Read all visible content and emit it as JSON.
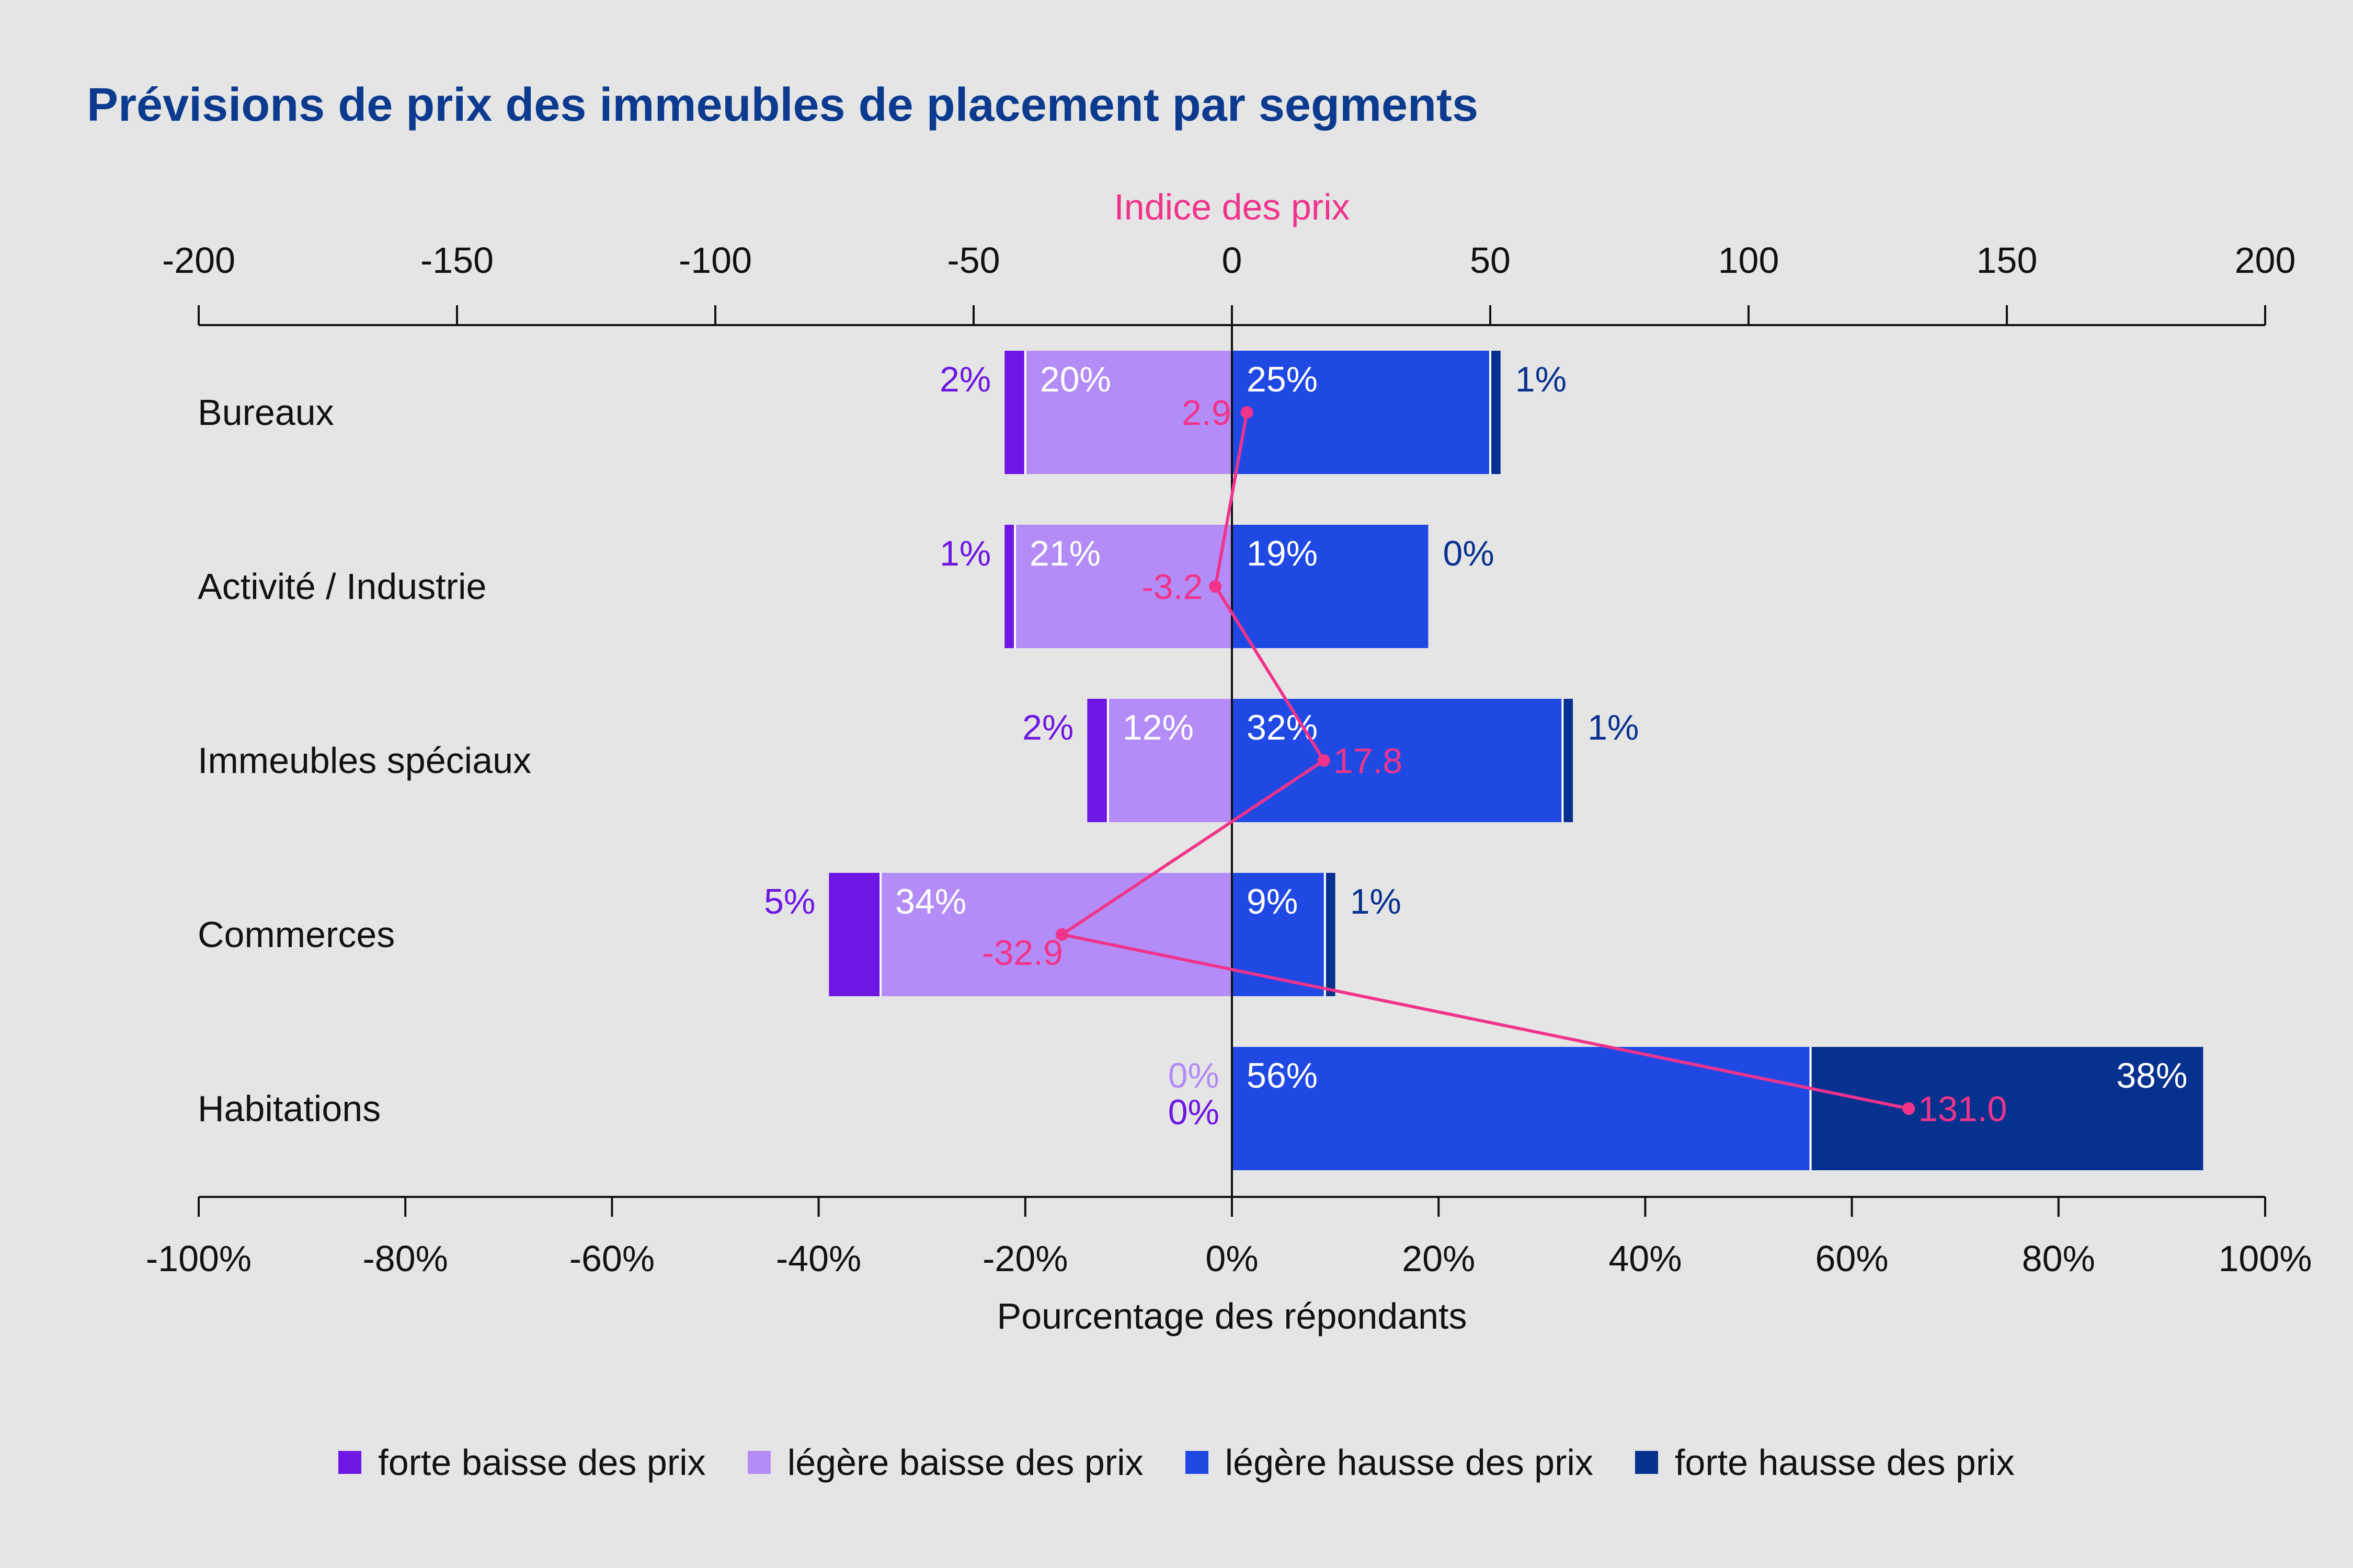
{
  "chart_data": {
    "type": "bar",
    "title": "Prévisions de prix des immeubles de placement par segments",
    "xlabel": "Pourcentage des répondants",
    "xlim": [
      -100,
      100
    ],
    "x_ticks": [
      "-100%",
      "-80%",
      "-60%",
      "-40%",
      "-20%",
      "0%",
      "20%",
      "40%",
      "60%",
      "80%",
      "100%"
    ],
    "secondary_axis": {
      "label": "Indice des prix",
      "range": [
        -200,
        200
      ],
      "ticks": [
        "-200",
        "-150",
        "-100",
        "-50",
        "0",
        "50",
        "100",
        "150",
        "200"
      ]
    },
    "categories": [
      "Bureaux",
      "Activité / Industrie",
      "Immeubles spéciaux",
      "Commerces",
      "Habitations"
    ],
    "series": [
      {
        "name": "forte baisse des prix",
        "values": [
          2,
          1,
          2,
          5,
          0
        ],
        "labels": [
          "2%",
          "1%",
          "2%",
          "5%",
          "0%"
        ],
        "color": "#6e16e2"
      },
      {
        "name": "légère baisse des prix",
        "values": [
          20,
          21,
          12,
          34,
          0
        ],
        "labels": [
          "20%",
          "21%",
          "12%",
          "34%",
          "0%"
        ],
        "color": "#b48cf7"
      },
      {
        "name": "légère hausse des prix",
        "values": [
          25,
          19,
          32,
          9,
          56
        ],
        "labels": [
          "25%",
          "19%",
          "32%",
          "9%",
          "56%"
        ],
        "color": "#1f49e2"
      },
      {
        "name": "forte hausse des prix",
        "values": [
          1,
          0,
          1,
          1,
          38
        ],
        "labels": [
          "1%",
          "0%",
          "1%",
          "1%",
          "38%"
        ],
        "color": "#07318f"
      }
    ],
    "index_line": {
      "name": "Indice des prix",
      "values": [
        2.9,
        -3.2,
        17.8,
        -32.9,
        131.0
      ],
      "labels": [
        "2.9",
        "-3.2",
        "17.8",
        "-32.9",
        "131.0"
      ],
      "color": "#f0338b"
    },
    "legend_position": "bottom",
    "grid": false
  }
}
